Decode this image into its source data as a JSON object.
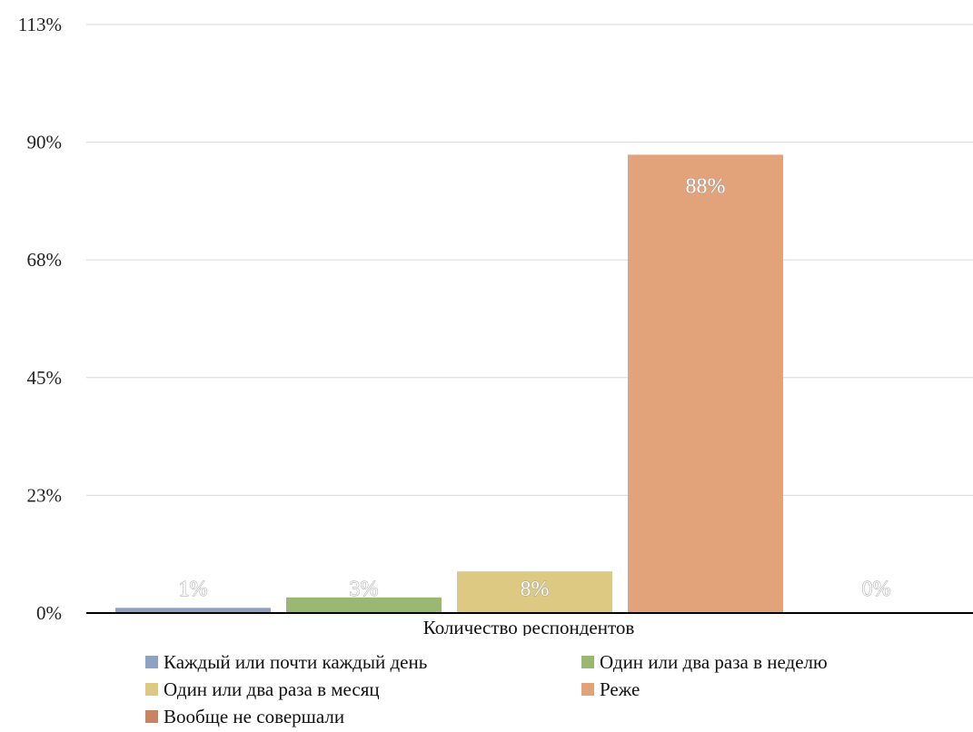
{
  "chart_data": {
    "type": "bar",
    "xlabel": "Количество респондентов",
    "ylabel": "",
    "ylim": [
      0,
      113
    ],
    "yticks": [
      "0%",
      "23%",
      "45%",
      "68%",
      "90%",
      "113%"
    ],
    "grid": true,
    "legend_position": "bottom",
    "series": [
      {
        "name": "Каждый или почти каждый день",
        "value": 1,
        "label": "1%",
        "color": "#8ea3c4"
      },
      {
        "name": "Один или два раза в неделю",
        "value": 3,
        "label": "3%",
        "color": "#9bb872"
      },
      {
        "name": "Один или два раза в месяц",
        "value": 8,
        "label": "8%",
        "color": "#ddc982"
      },
      {
        "name": "Реже",
        "value": 88,
        "label": "88%",
        "color": "#e3a37a"
      },
      {
        "name": "Вообще не совершали",
        "value": 0,
        "label": "0%",
        "color": "#c88563"
      }
    ]
  }
}
